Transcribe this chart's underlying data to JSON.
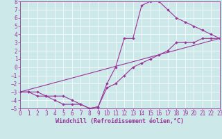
{
  "title": "",
  "xlabel": "Windchill (Refroidissement éolien,°C)",
  "ylabel": "",
  "xlim": [
    0,
    23
  ],
  "ylim": [
    -5,
    8
  ],
  "xticks": [
    0,
    1,
    2,
    3,
    4,
    5,
    6,
    7,
    8,
    9,
    10,
    11,
    12,
    13,
    14,
    15,
    16,
    17,
    18,
    19,
    20,
    21,
    22,
    23
  ],
  "yticks": [
    -5,
    -4,
    -3,
    -2,
    -1,
    0,
    1,
    2,
    3,
    4,
    5,
    6,
    7,
    8
  ],
  "bg_color": "#cce8e8",
  "grid_color": "#aacccc",
  "line_color": "#993399",
  "marker": "D",
  "markersize": 2.2,
  "linewidth": 0.8,
  "line1_x": [
    0,
    1,
    2,
    3,
    4,
    5,
    6,
    7,
    8,
    9,
    10,
    11,
    12,
    13,
    14,
    15,
    16,
    17,
    18,
    19,
    20,
    21,
    22,
    23
  ],
  "line1_y": [
    -3,
    -3,
    -3.5,
    -3.5,
    -4,
    -4.5,
    -4.5,
    -4.5,
    -5,
    -4.8,
    -2,
    0,
    3.5,
    3.5,
    7.5,
    8,
    8,
    7,
    6,
    5.5,
    5,
    4.5,
    4,
    3.5
  ],
  "line2_x": [
    0,
    1,
    2,
    3,
    4,
    5,
    6,
    7,
    8,
    9,
    10,
    11,
    12,
    13,
    14,
    15,
    16,
    17,
    18,
    19,
    20,
    21,
    22,
    23
  ],
  "line2_y": [
    -3,
    -3,
    -3,
    -3.5,
    -3.5,
    -3.5,
    -4,
    -4.5,
    -5,
    -4.8,
    -2.5,
    -2,
    -1,
    0,
    0.5,
    1,
    1.5,
    2,
    3,
    3,
    3,
    3.5,
    3.5,
    3.5
  ],
  "line3_x": [
    0,
    23
  ],
  "line3_y": [
    -3,
    3.5
  ],
  "tick_fontsize": 5.5,
  "xlabel_fontsize": 6,
  "xlabel_fontweight": "bold"
}
